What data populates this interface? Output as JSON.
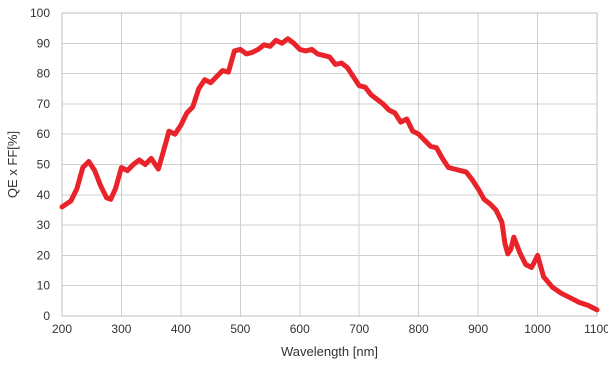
{
  "chart_data": {
    "type": "line",
    "title": "",
    "xlabel": "Wavelength [nm]",
    "ylabel": "QE x FF[%]",
    "xlim": [
      200,
      1100
    ],
    "ylim": [
      0,
      100
    ],
    "xticks": [
      200,
      300,
      400,
      500,
      600,
      700,
      800,
      900,
      1000,
      1100
    ],
    "yticks": [
      0,
      10,
      20,
      30,
      40,
      50,
      60,
      70,
      80,
      90,
      100
    ],
    "grid": true,
    "legend": "none",
    "line_color": "#e8232a",
    "series": [
      {
        "x": [
          200,
          215,
          225,
          235,
          245,
          255,
          265,
          275,
          282,
          290,
          300,
          310,
          320,
          330,
          340,
          350,
          362,
          370,
          380,
          390,
          400,
          410,
          420,
          430,
          440,
          450,
          460,
          470,
          480,
          490,
          500,
          510,
          520,
          530,
          540,
          550,
          560,
          570,
          580,
          590,
          600,
          610,
          620,
          630,
          640,
          650,
          660,
          670,
          680,
          690,
          700,
          710,
          720,
          730,
          740,
          750,
          760,
          770,
          780,
          790,
          800,
          810,
          820,
          830,
          840,
          850,
          860,
          870,
          880,
          890,
          900,
          910,
          920,
          930,
          940,
          945,
          950,
          955,
          960,
          970,
          980,
          990,
          1000,
          1010,
          1025,
          1040,
          1055,
          1070,
          1085,
          1100
        ],
        "y": [
          36,
          38,
          42,
          49,
          51,
          48,
          43,
          39,
          38.5,
          42,
          49,
          48,
          50,
          51.5,
          50,
          52,
          48.5,
          54,
          61,
          60,
          63,
          67,
          69,
          75,
          78,
          77,
          79,
          81,
          80.5,
          87.5,
          88,
          86.5,
          87,
          88,
          89.5,
          89,
          91,
          90,
          91.5,
          90,
          88,
          87.5,
          88,
          86.5,
          86,
          85.5,
          83,
          83.5,
          82,
          79,
          76,
          75.5,
          73,
          71.5,
          70,
          68,
          67,
          64,
          65,
          61,
          60,
          58,
          56,
          55.5,
          52,
          49,
          48.5,
          48,
          47.5,
          45,
          42,
          38.5,
          37,
          35,
          31,
          24,
          20.5,
          22,
          26,
          21,
          17,
          16,
          20,
          13,
          9.5,
          7.5,
          6,
          4.5,
          3.5,
          2
        ]
      }
    ]
  }
}
